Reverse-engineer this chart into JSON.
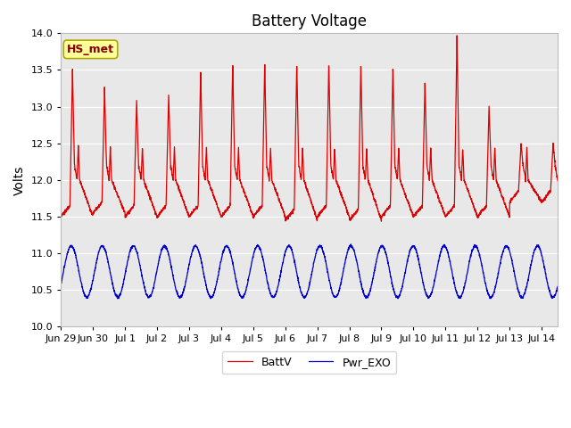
{
  "title": "Battery Voltage",
  "ylabel": "Volts",
  "ylim": [
    10.0,
    14.0
  ],
  "yticks": [
    10.0,
    10.5,
    11.0,
    11.5,
    12.0,
    12.5,
    13.0,
    13.5,
    14.0
  ],
  "plot_bg_color": "#e8e8e8",
  "line_color_battv": "#dd0000",
  "line_color_pwr": "#0000cc",
  "legend_label_battv": "BattV",
  "legend_label_pwr": "Pwr_EXO",
  "annotation_text": "HS_met",
  "annotation_bg": "#ffff99",
  "annotation_border": "#aaaa00",
  "tick_labels": [
    "Jun 29",
    "Jun 30",
    "Jul 1",
    "Jul 2",
    "Jul 3",
    "Jul 4",
    "Jul 5",
    "Jul 6",
    "Jul 7",
    "Jul 8",
    "Jul 9",
    "Jul 10",
    "Jul 11",
    "Jul 12",
    "Jul 13",
    "Jul 14"
  ],
  "tick_positions": [
    0,
    1,
    2,
    3,
    4,
    5,
    6,
    7,
    8,
    9,
    10,
    11,
    12,
    13,
    14,
    15
  ],
  "xlim": [
    0,
    15.5
  ],
  "day_peaks": [
    13.5,
    13.25,
    13.1,
    13.2,
    13.5,
    13.6,
    13.6,
    13.6,
    13.6,
    13.6,
    13.55,
    13.35,
    14.0,
    13.0,
    12.5
  ],
  "day_bases": [
    11.5,
    11.55,
    11.5,
    11.5,
    11.5,
    11.5,
    11.5,
    11.45,
    11.5,
    11.45,
    11.5,
    11.5,
    11.5,
    11.5,
    11.7
  ],
  "pwr_base": 10.75,
  "pwr_amp": 0.35,
  "pwr_period_days": 0.97
}
